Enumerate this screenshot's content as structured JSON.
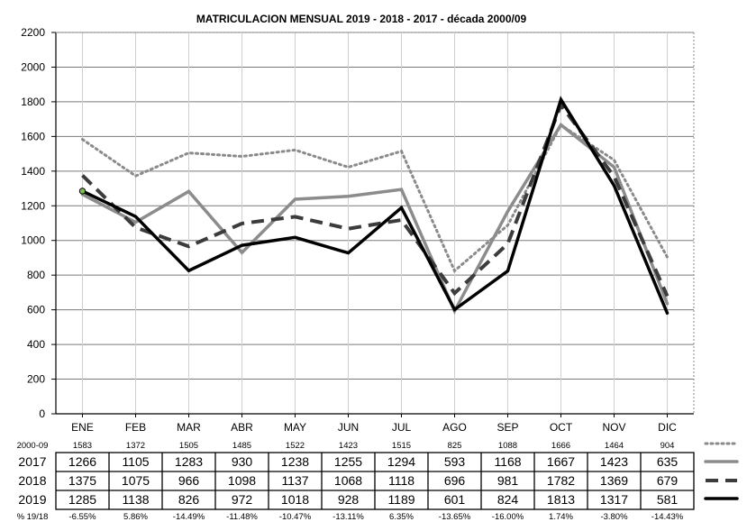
{
  "chart_data": {
    "type": "line",
    "title": "MATRICULACION MENSUAL  2019 - 2018 - 2017 - década 2000/09",
    "xlabel": "",
    "ylabel": "",
    "categories": [
      "ENE",
      "FEB",
      "MAR",
      "ABR",
      "MAY",
      "JUN",
      "JUL",
      "AGO",
      "SEP",
      "OCT",
      "NOV",
      "DIC"
    ],
    "ylim": [
      0,
      2200
    ],
    "yticks": [
      0,
      200,
      400,
      600,
      800,
      1000,
      1200,
      1400,
      1600,
      1800,
      2000,
      2200
    ],
    "grid": true,
    "series": [
      {
        "name": "2000-09",
        "style": "dotted",
        "color": "#8a8a8a",
        "values": [
          1583,
          1372,
          1505,
          1485,
          1522,
          1423,
          1515,
          825,
          1088,
          1666,
          1464,
          904
        ]
      },
      {
        "name": "2017",
        "style": "solid",
        "color": "#8c8c8c",
        "values": [
          1266,
          1105,
          1283,
          930,
          1238,
          1255,
          1294,
          593,
          1168,
          1667,
          1423,
          635
        ]
      },
      {
        "name": "2018",
        "style": "dashed",
        "color": "#3c3c3c",
        "values": [
          1375,
          1075,
          966,
          1098,
          1137,
          1068,
          1118,
          696,
          981,
          1782,
          1369,
          679
        ]
      },
      {
        "name": "2019",
        "style": "solid",
        "color": "#000000",
        "values": [
          1285,
          1138,
          826,
          972,
          1018,
          928,
          1189,
          601,
          824,
          1813,
          1317,
          581
        ]
      }
    ],
    "table": {
      "rows": [
        {
          "label": "2000-09",
          "values": [
            "1583",
            "1372",
            "1505",
            "1485",
            "1522",
            "1423",
            "1515",
            "825",
            "1088",
            "1666",
            "1464",
            "904"
          ]
        },
        {
          "label": "2017",
          "values": [
            "1266",
            "1105",
            "1283",
            "930",
            "1238",
            "1255",
            "1294",
            "593",
            "1168",
            "1667",
            "1423",
            "635"
          ]
        },
        {
          "label": "2018",
          "values": [
            "1375",
            "1075",
            "966",
            "1098",
            "1137",
            "1068",
            "1118",
            "696",
            "981",
            "1782",
            "1369",
            "679"
          ]
        },
        {
          "label": "2019",
          "values": [
            "1285",
            "1138",
            "826",
            "972",
            "1018",
            "928",
            "1189",
            "601",
            "824",
            "1813",
            "1317",
            "581"
          ]
        }
      ],
      "pct_label": "% 19/18",
      "pct_values": [
        "-6.55%",
        "5.86%",
        "-14.49%",
        "-11.48%",
        "-10.47%",
        "-13.11%",
        "6.35%",
        "-13.65%",
        "-16.00%",
        "1.74%",
        "-3.80%",
        "-14.43%"
      ]
    }
  }
}
